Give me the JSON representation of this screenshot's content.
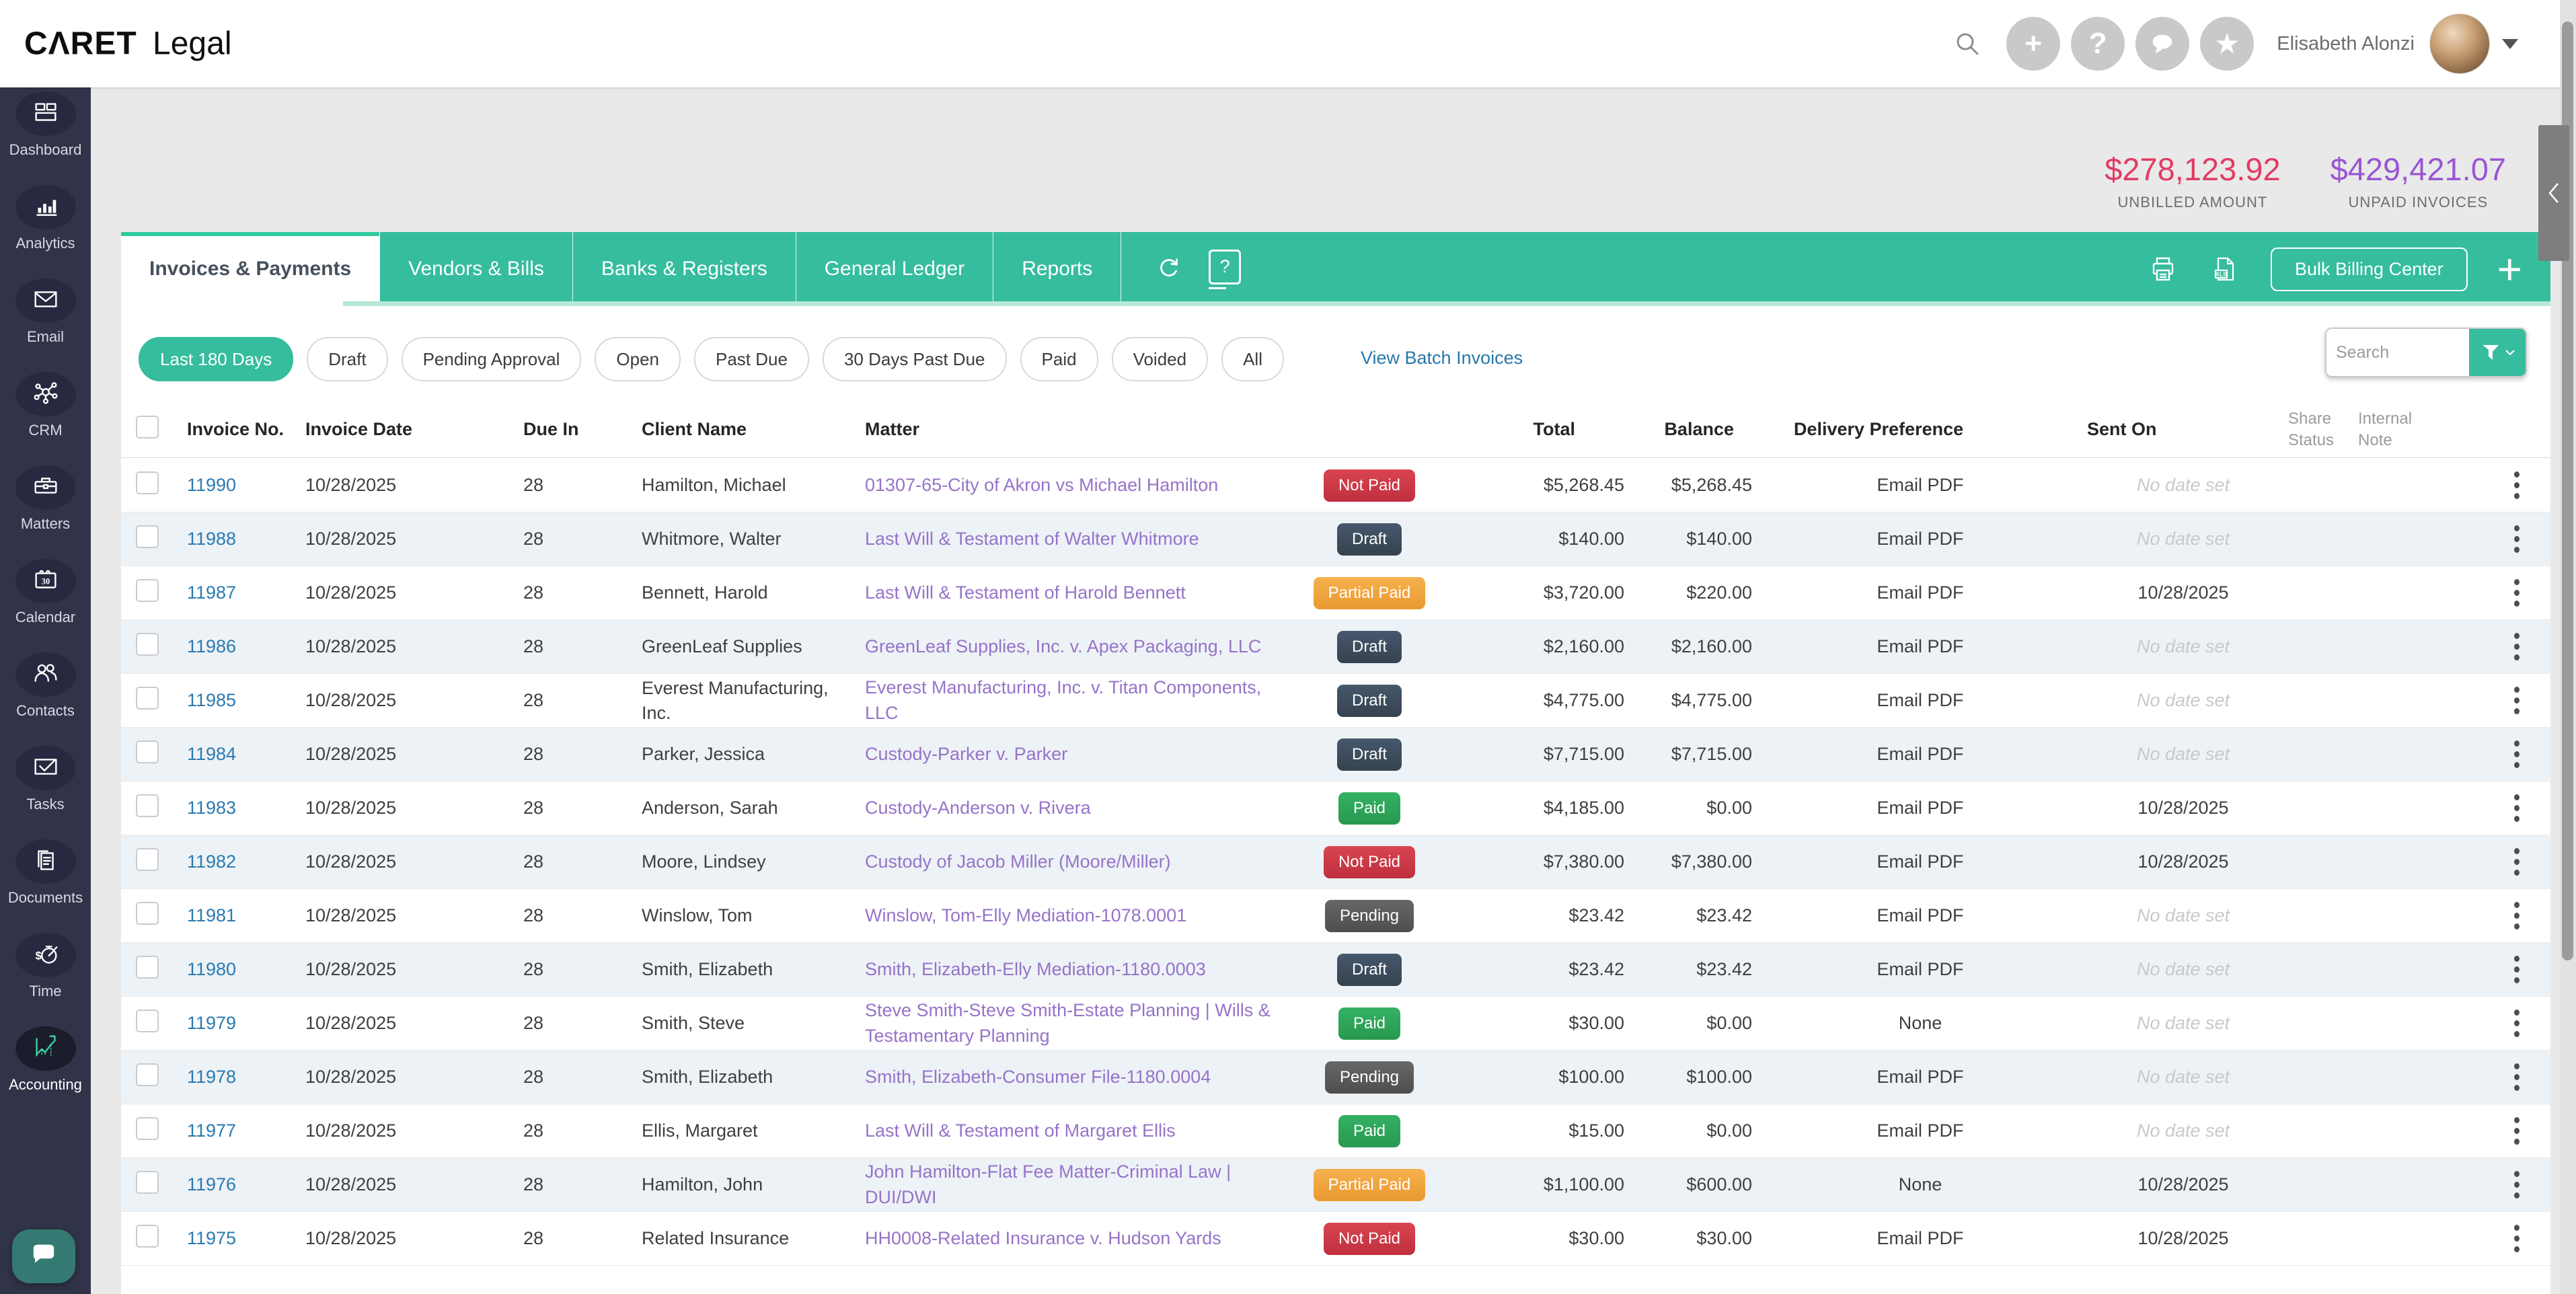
{
  "topbar": {
    "logo": {
      "brand": "CΛRET",
      "suffix": "Legal"
    },
    "icons": [
      {
        "name": "search-icon"
      },
      {
        "name": "add-icon",
        "glyph": "+"
      },
      {
        "name": "help-icon",
        "glyph": "?"
      },
      {
        "name": "messages-icon"
      },
      {
        "name": "favorites-icon",
        "glyph": "★"
      }
    ],
    "user_name": "Elisabeth Alonzi"
  },
  "summary": {
    "unbilled": {
      "value": "$278,123.92",
      "label": "UNBILLED AMOUNT",
      "color": "#e23b63"
    },
    "unpaid": {
      "value": "$429,421.07",
      "label": "UNPAID INVOICES",
      "color": "#9a55d4"
    }
  },
  "sidebar": {
    "items": [
      {
        "label": "Dashboard",
        "icon": "dashboard-icon",
        "active": false
      },
      {
        "label": "Analytics",
        "icon": "analytics-icon",
        "active": false
      },
      {
        "label": "Email",
        "icon": "email-icon",
        "active": false
      },
      {
        "label": "CRM",
        "icon": "crm-icon",
        "active": false
      },
      {
        "label": "Matters",
        "icon": "matters-icon",
        "active": false
      },
      {
        "label": "Calendar",
        "icon": "calendar-icon",
        "active": false
      },
      {
        "label": "Contacts",
        "icon": "contacts-icon",
        "active": false
      },
      {
        "label": "Tasks",
        "icon": "tasks-icon",
        "active": false
      },
      {
        "label": "Documents",
        "icon": "documents-icon",
        "active": false
      },
      {
        "label": "Time",
        "icon": "time-icon",
        "active": false
      },
      {
        "label": "Accounting",
        "icon": "accounting-icon",
        "active": true
      }
    ]
  },
  "tabs": {
    "items": [
      {
        "label": "Invoices & Payments",
        "active": true
      },
      {
        "label": "Vendors & Bills",
        "active": false
      },
      {
        "label": "Banks & Registers",
        "active": false
      },
      {
        "label": "General Ledger",
        "active": false
      },
      {
        "label": "Reports",
        "active": false
      }
    ],
    "toolbar_icons": [
      "refresh-icon",
      "shortcuts-help-icon",
      "print-icon",
      "export-xls-icon",
      "add-invoice-icon"
    ],
    "bulk_billing_label": "Bulk Billing Center"
  },
  "filters": {
    "chips": [
      {
        "label": "Last 180 Days",
        "active": true
      },
      {
        "label": "Draft",
        "active": false
      },
      {
        "label": "Pending Approval",
        "active": false
      },
      {
        "label": "Open",
        "active": false
      },
      {
        "label": "Past Due",
        "active": false
      },
      {
        "label": "30 Days Past Due",
        "active": false
      },
      {
        "label": "Paid",
        "active": false
      },
      {
        "label": "Voided",
        "active": false
      },
      {
        "label": "All",
        "active": false
      }
    ],
    "batch_link": "View Batch Invoices",
    "search_placeholder": "Search"
  },
  "table": {
    "columns": [
      "",
      "Invoice No.",
      "Invoice Date",
      "Due In",
      "Client Name",
      "Matter",
      "",
      "Total",
      "Balance",
      "Delivery Preference",
      "Sent On",
      "Share Status",
      "Internal Note",
      ""
    ],
    "no_date_text": "No date set",
    "rows": [
      {
        "invoice_no": "11990",
        "invoice_date": "10/28/2025",
        "due_in": "28",
        "client": "Hamilton, Michael",
        "matter": "01307-65-City of Akron vs Michael Hamilton",
        "status": "Not Paid",
        "status_class": "not_paid",
        "total": "$5,268.45",
        "balance": "$5,268.45",
        "delivery": "Email PDF",
        "sent_on": "No date set"
      },
      {
        "invoice_no": "11988",
        "invoice_date": "10/28/2025",
        "due_in": "28",
        "client": "Whitmore, Walter",
        "matter": "Last Will & Testament of Walter Whitmore",
        "status": "Draft",
        "status_class": "draft",
        "total": "$140.00",
        "balance": "$140.00",
        "delivery": "Email PDF",
        "sent_on": "No date set"
      },
      {
        "invoice_no": "11987",
        "invoice_date": "10/28/2025",
        "due_in": "28",
        "client": "Bennett, Harold",
        "matter": "Last Will & Testament of Harold Bennett",
        "status": "Partial Paid",
        "status_class": "partial",
        "total": "$3,720.00",
        "balance": "$220.00",
        "delivery": "Email PDF",
        "sent_on": "10/28/2025"
      },
      {
        "invoice_no": "11986",
        "invoice_date": "10/28/2025",
        "due_in": "28",
        "client": "GreenLeaf Supplies",
        "matter": "GreenLeaf Supplies, Inc. v. Apex Packaging, LLC",
        "status": "Draft",
        "status_class": "draft",
        "total": "$2,160.00",
        "balance": "$2,160.00",
        "delivery": "Email PDF",
        "sent_on": "No date set"
      },
      {
        "invoice_no": "11985",
        "invoice_date": "10/28/2025",
        "due_in": "28",
        "client": "Everest Manufacturing, Inc.",
        "matter": "Everest Manufacturing, Inc. v. Titan Components, LLC",
        "status": "Draft",
        "status_class": "draft",
        "total": "$4,775.00",
        "balance": "$4,775.00",
        "delivery": "Email PDF",
        "sent_on": "No date set"
      },
      {
        "invoice_no": "11984",
        "invoice_date": "10/28/2025",
        "due_in": "28",
        "client": "Parker, Jessica",
        "matter": "Custody-Parker v. Parker",
        "status": "Draft",
        "status_class": "draft",
        "total": "$7,715.00",
        "balance": "$7,715.00",
        "delivery": "Email PDF",
        "sent_on": "No date set"
      },
      {
        "invoice_no": "11983",
        "invoice_date": "10/28/2025",
        "due_in": "28",
        "client": "Anderson, Sarah",
        "matter": "Custody-Anderson v. Rivera",
        "status": "Paid",
        "status_class": "paid",
        "total": "$4,185.00",
        "balance": "$0.00",
        "delivery": "Email PDF",
        "sent_on": "10/28/2025"
      },
      {
        "invoice_no": "11982",
        "invoice_date": "10/28/2025",
        "due_in": "28",
        "client": "Moore, Lindsey",
        "matter": "Custody of Jacob Miller (Moore/Miller)",
        "status": "Not Paid",
        "status_class": "not_paid",
        "total": "$7,380.00",
        "balance": "$7,380.00",
        "delivery": "Email PDF",
        "sent_on": "10/28/2025"
      },
      {
        "invoice_no": "11981",
        "invoice_date": "10/28/2025",
        "due_in": "28",
        "client": "Winslow, Tom",
        "matter": "Winslow, Tom-Elly Mediation-1078.0001",
        "status": "Pending",
        "status_class": "pending",
        "total": "$23.42",
        "balance": "$23.42",
        "delivery": "Email PDF",
        "sent_on": "No date set"
      },
      {
        "invoice_no": "11980",
        "invoice_date": "10/28/2025",
        "due_in": "28",
        "client": "Smith, Elizabeth",
        "matter": "Smith, Elizabeth-Elly Mediation-1180.0003",
        "status": "Draft",
        "status_class": "draft",
        "total": "$23.42",
        "balance": "$23.42",
        "delivery": "Email PDF",
        "sent_on": "No date set"
      },
      {
        "invoice_no": "11979",
        "invoice_date": "10/28/2025",
        "due_in": "28",
        "client": "Smith, Steve",
        "matter": "Steve Smith-Steve Smith-Estate Planning | Wills & Testamentary Planning",
        "status": "Paid",
        "status_class": "paid",
        "total": "$30.00",
        "balance": "$0.00",
        "delivery": "None",
        "sent_on": "No date set"
      },
      {
        "invoice_no": "11978",
        "invoice_date": "10/28/2025",
        "due_in": "28",
        "client": "Smith, Elizabeth",
        "matter": "Smith, Elizabeth-Consumer File-1180.0004",
        "status": "Pending",
        "status_class": "pending",
        "total": "$100.00",
        "balance": "$100.00",
        "delivery": "Email PDF",
        "sent_on": "No date set"
      },
      {
        "invoice_no": "11977",
        "invoice_date": "10/28/2025",
        "due_in": "28",
        "client": "Ellis, Margaret",
        "matter": "Last Will & Testament of Margaret Ellis",
        "status": "Paid",
        "status_class": "paid",
        "total": "$15.00",
        "balance": "$0.00",
        "delivery": "Email PDF",
        "sent_on": "No date set"
      },
      {
        "invoice_no": "11976",
        "invoice_date": "10/28/2025",
        "due_in": "28",
        "client": "Hamilton, John",
        "matter": "John Hamilton-Flat Fee Matter-Criminal Law | DUI/DWI",
        "status": "Partial Paid",
        "status_class": "partial",
        "total": "$1,100.00",
        "balance": "$600.00",
        "delivery": "None",
        "sent_on": "10/28/2025"
      },
      {
        "invoice_no": "11975",
        "invoice_date": "10/28/2025",
        "due_in": "28",
        "client": "Related Insurance",
        "matter": "HH0008-Related Insurance v. Hudson Yards",
        "status": "Not Paid",
        "status_class": "not_paid",
        "total": "$30.00",
        "balance": "$30.00",
        "delivery": "Email PDF",
        "sent_on": "10/28/2025"
      }
    ]
  },
  "colors": {
    "accent_teal": "#35bd9d",
    "tab_strip": "#b7e9d8",
    "sidebar_bg": "#313349",
    "badge_not_paid": "#c93a46",
    "badge_draft": "#3d4c5f",
    "badge_partial": "#efa43c",
    "badge_paid": "#2da55a",
    "badge_pending": "#595959",
    "link_blue": "#2a7ab0",
    "matter_purple": "#9673c9",
    "row_stripe": "#edf2f6"
  }
}
